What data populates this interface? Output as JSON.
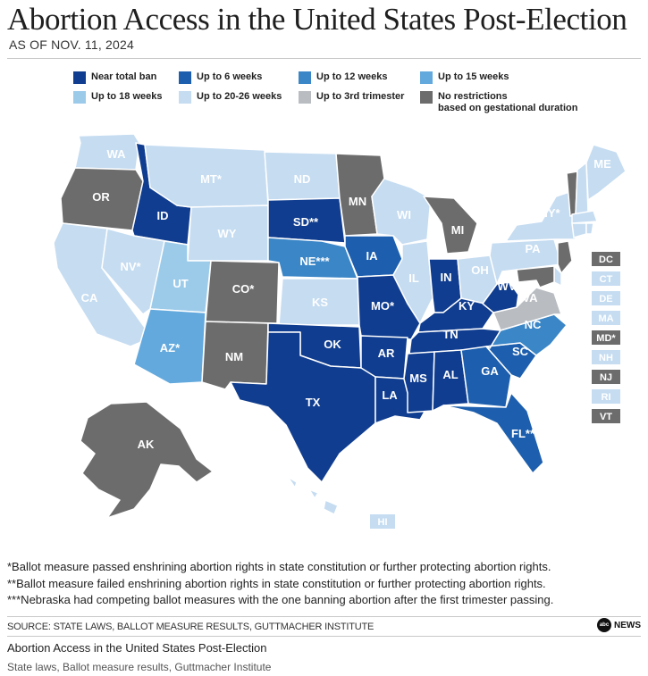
{
  "header": {
    "title": "Abortion Access in the United States Post-Election",
    "subtitle": "AS OF NOV. 11, 2024"
  },
  "legend": [
    {
      "key": "ban",
      "label": "Near total ban",
      "color": "#103d8f"
    },
    {
      "key": "w6",
      "label": "Up to 6 weeks",
      "color": "#1d5fae"
    },
    {
      "key": "w12",
      "label": "Up to 12 weeks",
      "color": "#3b86c7"
    },
    {
      "key": "w15",
      "label": "Up to 15 weeks",
      "color": "#63a9dd"
    },
    {
      "key": "w18",
      "label": "Up to 18 weeks",
      "color": "#9ccbea"
    },
    {
      "key": "w2026",
      "label": "Up to 20-26 weeks",
      "color": "#c5dcf1"
    },
    {
      "key": "tri3",
      "label": "Up to 3rd trimester",
      "color": "#b9bdc2"
    },
    {
      "key": "none",
      "label": "No restrictions\nbased on gestational duration",
      "color": "#6c6c6c"
    }
  ],
  "states": [
    {
      "abbr": "WA",
      "category": "w2026",
      "label": "WA"
    },
    {
      "abbr": "OR",
      "category": "none",
      "label": "OR"
    },
    {
      "abbr": "CA",
      "category": "w2026",
      "label": "CA"
    },
    {
      "abbr": "ID",
      "category": "ban",
      "label": "ID"
    },
    {
      "abbr": "NV",
      "category": "w2026",
      "label": "NV*"
    },
    {
      "abbr": "MT",
      "category": "w2026",
      "label": "MT*"
    },
    {
      "abbr": "WY",
      "category": "w2026",
      "label": "WY"
    },
    {
      "abbr": "UT",
      "category": "w18",
      "label": "UT"
    },
    {
      "abbr": "AZ",
      "category": "w15",
      "label": "AZ*"
    },
    {
      "abbr": "CO",
      "category": "none",
      "label": "CO*"
    },
    {
      "abbr": "NM",
      "category": "none",
      "label": "NM"
    },
    {
      "abbr": "ND",
      "category": "w2026",
      "label": "ND"
    },
    {
      "abbr": "SD",
      "category": "ban",
      "label": "SD**"
    },
    {
      "abbr": "NE",
      "category": "w12",
      "label": "NE***"
    },
    {
      "abbr": "KS",
      "category": "w2026",
      "label": "KS"
    },
    {
      "abbr": "OK",
      "category": "ban",
      "label": "OK"
    },
    {
      "abbr": "TX",
      "category": "ban",
      "label": "TX"
    },
    {
      "abbr": "MN",
      "category": "none",
      "label": "MN"
    },
    {
      "abbr": "IA",
      "category": "w6",
      "label": "IA"
    },
    {
      "abbr": "MO",
      "category": "ban",
      "label": "MO*"
    },
    {
      "abbr": "AR",
      "category": "ban",
      "label": "AR"
    },
    {
      "abbr": "LA",
      "category": "ban",
      "label": "LA"
    },
    {
      "abbr": "WI",
      "category": "w2026",
      "label": "WI"
    },
    {
      "abbr": "IL",
      "category": "w2026",
      "label": "IL"
    },
    {
      "abbr": "MI",
      "category": "none",
      "label": "MI"
    },
    {
      "abbr": "IN",
      "category": "ban",
      "label": "IN"
    },
    {
      "abbr": "OH",
      "category": "w2026",
      "label": "OH"
    },
    {
      "abbr": "KY",
      "category": "ban",
      "label": "KY"
    },
    {
      "abbr": "TN",
      "category": "ban",
      "label": "TN"
    },
    {
      "abbr": "MS",
      "category": "ban",
      "label": "MS"
    },
    {
      "abbr": "AL",
      "category": "ban",
      "label": "AL"
    },
    {
      "abbr": "GA",
      "category": "w6",
      "label": "GA"
    },
    {
      "abbr": "FL",
      "category": "w6",
      "label": "FL**"
    },
    {
      "abbr": "SC",
      "category": "w6",
      "label": "SC"
    },
    {
      "abbr": "NC",
      "category": "w12",
      "label": "NC"
    },
    {
      "abbr": "VA",
      "category": "tri3",
      "label": "VA"
    },
    {
      "abbr": "WV",
      "category": "ban",
      "label": "WV"
    },
    {
      "abbr": "PA",
      "category": "w2026",
      "label": "PA"
    },
    {
      "abbr": "NY",
      "category": "w2026",
      "label": "NY*"
    },
    {
      "abbr": "VT",
      "category": "none",
      "label": ""
    },
    {
      "abbr": "NH",
      "category": "w2026",
      "label": ""
    },
    {
      "abbr": "ME",
      "category": "w2026",
      "label": "ME"
    },
    {
      "abbr": "MA",
      "category": "w2026",
      "label": ""
    },
    {
      "abbr": "CT",
      "category": "w2026",
      "label": ""
    },
    {
      "abbr": "RI",
      "category": "w2026",
      "label": ""
    },
    {
      "abbr": "NJ",
      "category": "none",
      "label": ""
    },
    {
      "abbr": "DE",
      "category": "w2026",
      "label": ""
    },
    {
      "abbr": "MD",
      "category": "none",
      "label": ""
    },
    {
      "abbr": "AK",
      "category": "none",
      "label": "AK"
    },
    {
      "abbr": "HI",
      "category": "w2026",
      "label": "HI"
    }
  ],
  "small_states": [
    {
      "label": "DC",
      "category": "none"
    },
    {
      "label": "CT",
      "category": "w2026"
    },
    {
      "label": "DE",
      "category": "w2026"
    },
    {
      "label": "MA",
      "category": "w2026"
    },
    {
      "label": "MD*",
      "category": "none"
    },
    {
      "label": "NH",
      "category": "w2026"
    },
    {
      "label": "NJ",
      "category": "none"
    },
    {
      "label": "RI",
      "category": "w2026"
    },
    {
      "label": "VT",
      "category": "none"
    }
  ],
  "notes": [
    "*Ballot measure passed enshrining abortion rights in state constitution or further protecting abortion rights.",
    "**Ballot measure failed enshrining abortion rights in state constitution or further protecting abortion rights.",
    "***Nebraska had competing ballot measures with the one banning abortion after the first trimester passing."
  ],
  "source": "SOURCE: STATE LAWS, BALLOT MEASURE RESULTS, GUTTMACHER INSTITUTE",
  "logo": {
    "mark": "abc",
    "text": "NEWS"
  },
  "caption": "Abortion Access in the United States Post-Election",
  "credit": "State laws, Ballot measure results, Guttmacher Institute"
}
